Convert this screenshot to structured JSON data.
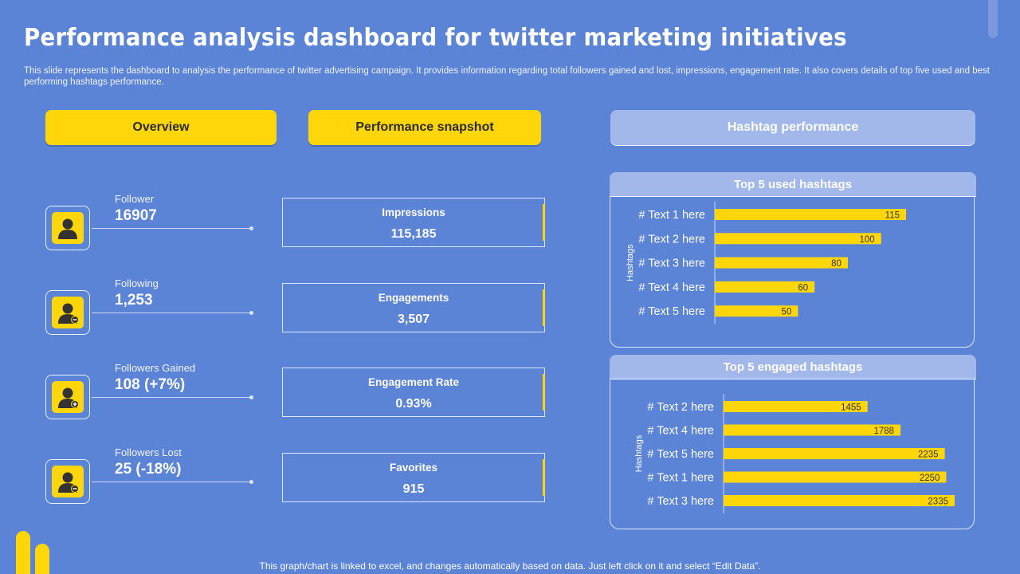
{
  "title": "Performance analysis dashboard for twitter marketing initiatives",
  "subtitle": "This slide represents the dashboard to analysis the performance of twitter advertising campaign. It provides information regarding total followers gained and lost, impressions, engagement rate. It also covers details of top five used and best performing hashtags performance.",
  "headers": {
    "overview": "Overview",
    "snapshot": "Performance snapshot",
    "hashtag": "Hashtag performance"
  },
  "overview": [
    {
      "label": "Follower",
      "value": "16907",
      "icon": "user-icon"
    },
    {
      "label": "Following",
      "value": "1,253",
      "icon": "user-minus-icon"
    },
    {
      "label": "Followers Gained",
      "value": "108 (+7%)",
      "icon": "user-add-icon"
    },
    {
      "label": "Followers Lost",
      "value": "25 (-18%)",
      "icon": "user-remove-icon"
    }
  ],
  "snapshot": [
    {
      "label": "Impressions",
      "value": "115,185"
    },
    {
      "label": "Engagements",
      "value": "3,507"
    },
    {
      "label": "Engagement Rate",
      "value": "0.93%"
    },
    {
      "label": "Favorites",
      "value": "915"
    }
  ],
  "footer": "This graph/chart is linked to excel,  and changes automatically based on data. Just left click on it and select “Edit Data”.",
  "colors": {
    "background": "#5b83d6",
    "accent": "#ffd60a",
    "panel_header": "#a3b8ea"
  },
  "chart_data": [
    {
      "type": "bar",
      "orientation": "horizontal",
      "title": "Top 5 used hashtags",
      "ylabel": "Hashtags",
      "categories": [
        "# Text 1 here",
        "# Text 2 here",
        "# Text 3 here",
        "# Text 4 here",
        "# Text 5 here"
      ],
      "values": [
        115,
        100,
        80,
        60,
        50
      ],
      "xlim": [
        0,
        150
      ],
      "data_labels": true,
      "grid": false
    },
    {
      "type": "bar",
      "orientation": "horizontal",
      "title": "Top 5 engaged hashtags",
      "ylabel": "Hashtags",
      "categories": [
        "# Text 2 here",
        "# Text 4 here",
        "# Text 5 here",
        "# Text 1 here",
        "# Text 3 here"
      ],
      "values": [
        1455,
        1788,
        2235,
        2250,
        2335
      ],
      "xlim": [
        0,
        2500
      ],
      "data_labels": true,
      "grid": false
    }
  ]
}
